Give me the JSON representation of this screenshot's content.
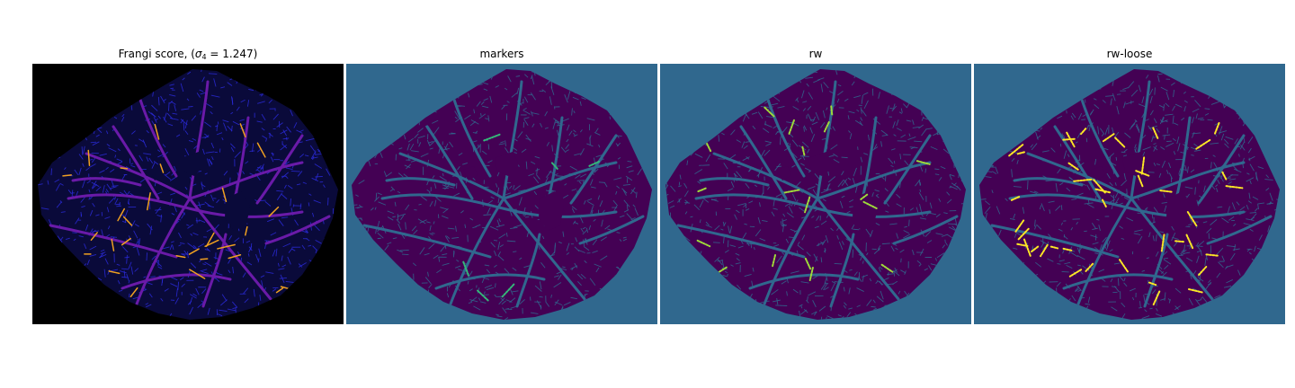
{
  "figure": {
    "panels": [
      {
        "id": "frangi",
        "title_main": "Frangi score, (",
        "title_sigma": "σ",
        "title_sub": "4",
        "title_rest": " = 1.247)",
        "background": "#000000",
        "blob_fill": "#0a0a3a",
        "vessel_color": "#6a1aa8",
        "highlight_color": "#f0a020",
        "texture_color": "#2a2ad8"
      },
      {
        "id": "markers",
        "title": "markers",
        "background": "#30688e",
        "blob_fill": "#440154",
        "vessel_color": "#30688e",
        "texture_color": "#30688e",
        "highlight_color": "#35b779"
      },
      {
        "id": "rw",
        "title": "rw",
        "background": "#30688e",
        "blob_fill": "#440154",
        "vessel_color": "#30688e",
        "texture_color": "#30688e",
        "highlight_color": "#9fda3a"
      },
      {
        "id": "rw-loose",
        "title": "rw-loose",
        "background": "#30688e",
        "blob_fill": "#440154",
        "vessel_color": "#30688e",
        "texture_color": "#30688e",
        "highlight_color": "#fde725"
      }
    ]
  }
}
